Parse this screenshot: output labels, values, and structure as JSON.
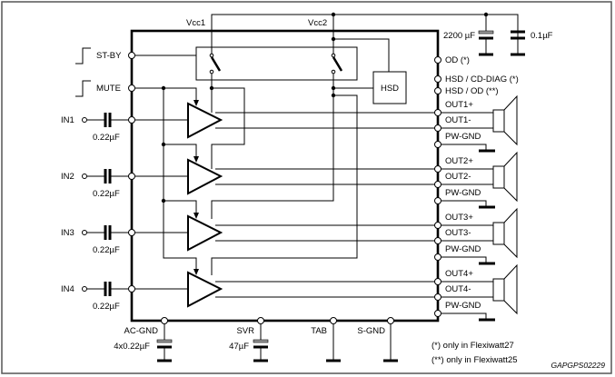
{
  "supplies": {
    "vcc1": "Vcc1",
    "vcc2": "Vcc2"
  },
  "control_pins": {
    "standby": "ST-BY",
    "mute": "MUTE"
  },
  "hsd_block": "HSD",
  "supply_caps": {
    "bulk": "2200 µF",
    "bypass": "0.1µF"
  },
  "status_pins": [
    "OD (*)",
    "HSD / CD-DIAG (*)",
    "HSD / OD (**)"
  ],
  "channels": [
    {
      "input": "IN1",
      "cap": "0.22µF",
      "out_pos": "OUT1+",
      "out_neg": "OUT1-",
      "gnd": "PW-GND"
    },
    {
      "input": "IN2",
      "cap": "0.22µF",
      "out_pos": "OUT2+",
      "out_neg": "OUT2-",
      "gnd": "PW-GND"
    },
    {
      "input": "IN3",
      "cap": "0.22µF",
      "out_pos": "OUT3+",
      "out_neg": "OUT3-",
      "gnd": "PW-GND"
    },
    {
      "input": "IN4",
      "cap": "0.22µF",
      "out_pos": "OUT4+",
      "out_neg": "OUT4-",
      "gnd": "PW-GND"
    }
  ],
  "bottom_pins": {
    "ac_gnd": "AC-GND",
    "ac_gnd_cap": "4x0.22µF",
    "svr": "SVR",
    "svr_cap": "47µF",
    "tab": "TAB",
    "s_gnd": "S-GND"
  },
  "footnotes": [
    "(*) only in Flexiwatt27",
    "(**) only in Flexiwatt25"
  ],
  "figure_code": "GAPGPS02229"
}
